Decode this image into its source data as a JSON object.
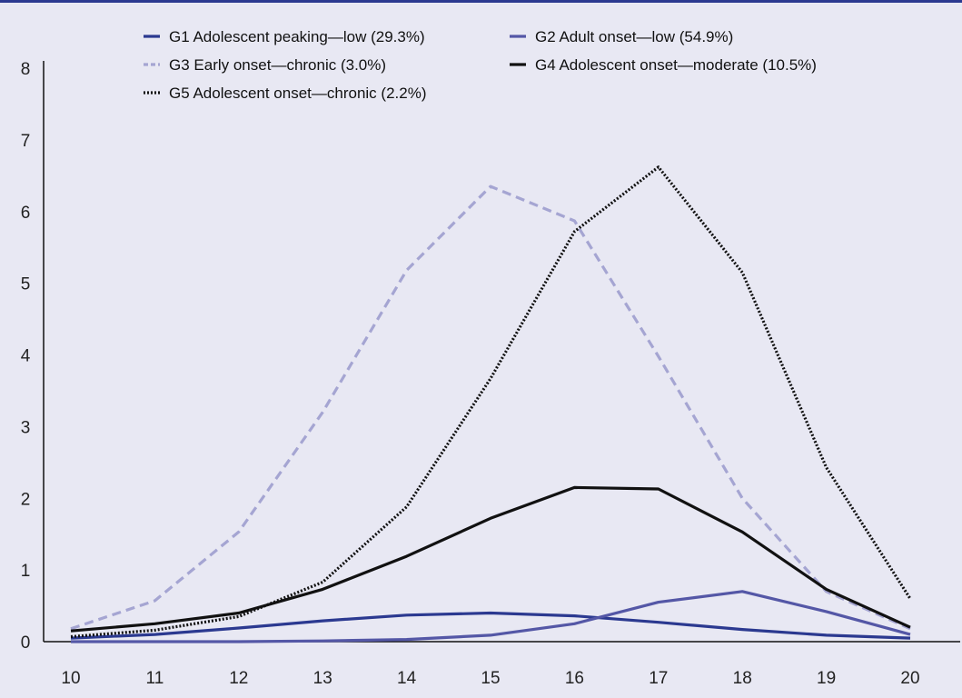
{
  "chart_data": {
    "type": "line",
    "title": "",
    "xlabel": "",
    "ylabel": "",
    "x": [
      10,
      11,
      12,
      13,
      14,
      15,
      16,
      17,
      18,
      19,
      20
    ],
    "xlim": [
      10,
      20
    ],
    "ylim": [
      0,
      8
    ],
    "y_ticks": [
      "0",
      "1",
      "2",
      "3",
      "4",
      "5",
      "6",
      "7",
      "8"
    ],
    "x_ticks": [
      "10",
      "11",
      "12",
      "13",
      "14",
      "15",
      "16",
      "17",
      "18",
      "19",
      "20"
    ],
    "grid": false,
    "legend_position": "top",
    "series": [
      {
        "name": "G1 Adolescent peaking—low (29.3%)",
        "color": "#2b3990",
        "dash": "solid",
        "values": [
          0.05,
          0.1,
          0.19,
          0.29,
          0.37,
          0.4,
          0.36,
          0.27,
          0.17,
          0.09,
          0.05
        ]
      },
      {
        "name": "G2 Adult onset—low  (54.9%)",
        "color": "#5457a6",
        "dash": "solid",
        "values": [
          0.0,
          0.0,
          0.0,
          0.01,
          0.03,
          0.09,
          0.25,
          0.55,
          0.7,
          0.42,
          0.1
        ]
      },
      {
        "name": "G3 Early onset—chronic (3.0%)",
        "color": "#a5a5d2",
        "dash": "dashed",
        "values": [
          0.18,
          0.57,
          1.53,
          3.2,
          5.18,
          6.35,
          5.87,
          3.98,
          2.0,
          0.7,
          0.18
        ]
      },
      {
        "name": "G4 Adolescent onset—moderate (10.5%)",
        "color": "#111111",
        "dash": "solid",
        "values": [
          0.15,
          0.25,
          0.4,
          0.73,
          1.19,
          1.72,
          2.15,
          2.13,
          1.53,
          0.73,
          0.2
        ]
      },
      {
        "name": "G5 Adolescent onset—chronic (2.2%)",
        "color": "#111111",
        "dash": "dotted",
        "values": [
          0.07,
          0.16,
          0.35,
          0.83,
          1.88,
          3.67,
          5.72,
          6.62,
          5.15,
          2.43,
          0.6
        ]
      }
    ]
  }
}
